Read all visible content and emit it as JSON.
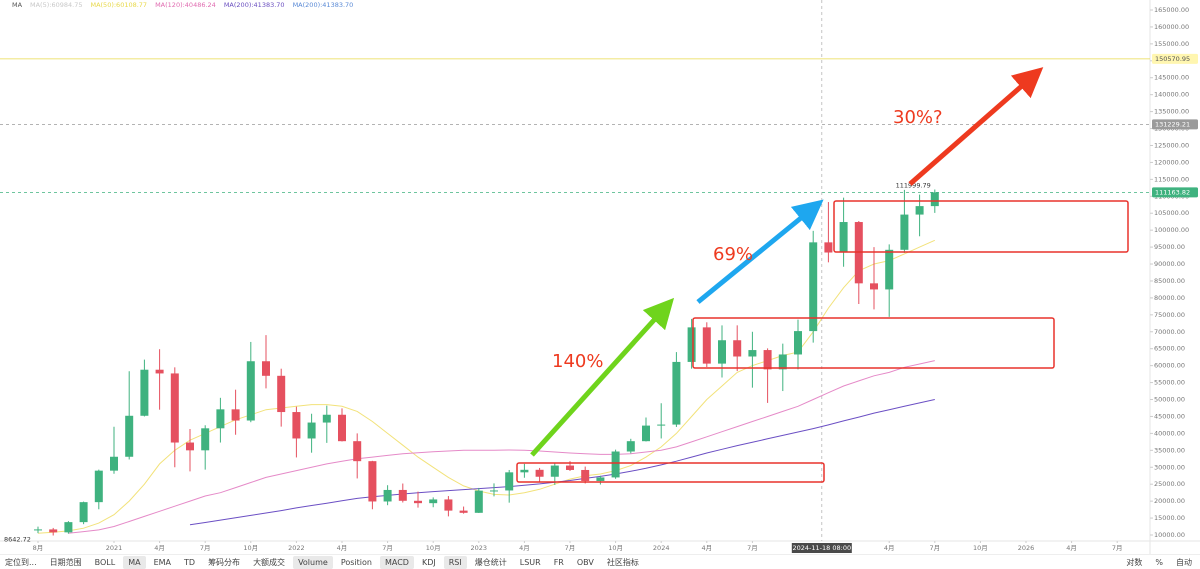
{
  "legend": {
    "title": "MA",
    "items": [
      {
        "text": "MA(5):60984.75",
        "color": "#c8c8c8"
      },
      {
        "text": "MA(50):60108.77",
        "color": "#e8d94a"
      },
      {
        "text": "MA(120):40486.24",
        "color": "#e06bb0"
      },
      {
        "text": "MA(200):41383.70",
        "color": "#6a4fc0"
      },
      {
        "text": "MA(200):41383.70",
        "color": "#5a8ad6"
      }
    ]
  },
  "chart_data": {
    "type": "candlestick",
    "x": [
      "2020-08",
      "2020-09",
      "2020-10",
      "2020-11",
      "2020-12",
      "2021-01",
      "2021-02",
      "2021-03",
      "2021-04",
      "2021-05",
      "2021-06",
      "2021-07",
      "2021-08",
      "2021-09",
      "2021-10",
      "2021-11",
      "2021-12",
      "2022-01",
      "2022-02",
      "2022-03",
      "2022-04",
      "2022-05",
      "2022-06",
      "2022-07",
      "2022-08",
      "2022-09",
      "2022-10",
      "2022-11",
      "2022-12",
      "2023-01",
      "2023-02",
      "2023-03",
      "2023-04",
      "2023-05",
      "2023-06",
      "2023-07",
      "2023-08",
      "2023-09",
      "2023-10",
      "2023-11",
      "2023-12",
      "2024-01",
      "2024-02",
      "2024-03",
      "2024-04",
      "2024-05",
      "2024-06",
      "2024-07",
      "2024-08",
      "2024-09",
      "2024-10",
      "2024-11",
      "2024-12",
      "2025-01",
      "2025-02",
      "2025-03",
      "2025-04",
      "2025-05",
      "2025-06",
      "2025-07"
    ],
    "open": [
      11350,
      11650,
      10780,
      13800,
      19700,
      29000,
      33100,
      45200,
      58800,
      57700,
      37300,
      35000,
      41500,
      47100,
      43800,
      61300,
      57000,
      46300,
      38500,
      43200,
      45500,
      37700,
      31800,
      19900,
      23300,
      20100,
      19400,
      20500,
      17200,
      16550,
      23100,
      23150,
      28500,
      29250,
      27200,
      30500,
      29200,
      25950,
      27000,
      34650,
      37700,
      42300,
      42600,
      61100,
      71300,
      60600,
      67500,
      62700,
      64600,
      58900,
      63300,
      70200,
      96400,
      93400,
      102400,
      84300,
      82500,
      94200,
      104600,
      107100
    ],
    "high": [
      12470,
      12090,
      14100,
      19860,
      29300,
      41950,
      58350,
      61780,
      64850,
      59500,
      41300,
      42400,
      50500,
      52900,
      67000,
      69000,
      59100,
      47900,
      45800,
      48200,
      47400,
      40000,
      31900,
      24700,
      25200,
      22800,
      21100,
      21500,
      18400,
      23900,
      25250,
      29200,
      31000,
      29800,
      31400,
      31800,
      30200,
      27500,
      35200,
      38400,
      44700,
      48900,
      64000,
      73800,
      72800,
      71900,
      71900,
      70000,
      65100,
      66500,
      73600,
      99800,
      108300,
      109600,
      102700,
      95000,
      95800,
      111900,
      110500,
      111999.79
    ],
    "low": [
      10540,
      9850,
      10400,
      13200,
      17600,
      28100,
      32300,
      45000,
      47000,
      30000,
      28800,
      29300,
      37300,
      39600,
      43300,
      53300,
      42000,
      32900,
      34300,
      37200,
      37600,
      26700,
      17600,
      18800,
      19600,
      18100,
      18200,
      15500,
      16300,
      16500,
      21400,
      19550,
      26900,
      25800,
      24800,
      28900,
      25200,
      24900,
      26600,
      34100,
      37600,
      38500,
      41900,
      59100,
      59600,
      56500,
      58400,
      53500,
      49000,
      52500,
      58900,
      66800,
      90500,
      89200,
      78200,
      76600,
      74400,
      93300,
      98200,
      105100
    ],
    "close": [
      11650,
      10780,
      13800,
      19700,
      29000,
      33100,
      45200,
      58800,
      57700,
      37300,
      35000,
      41500,
      47100,
      43800,
      61300,
      57000,
      46300,
      38500,
      43200,
      45500,
      37700,
      31800,
      19900,
      23300,
      20100,
      19400,
      20500,
      17200,
      16550,
      23100,
      23150,
      28500,
      29250,
      27200,
      30500,
      29200,
      25950,
      27000,
      34650,
      37700,
      42300,
      42600,
      61100,
      71300,
      60600,
      67500,
      62700,
      64600,
      58900,
      63300,
      70200,
      96400,
      93400,
      102400,
      84300,
      82500,
      94200,
      104600,
      107100,
      111163.82
    ],
    "up_color": "#3fb27f",
    "down_color": "#e5505f",
    "lines": [
      {
        "color": "#f2e27a",
        "values": [
          10500,
          10800,
          11200,
          12000,
          13500,
          16000,
          20000,
          25000,
          31000,
          35000,
          38000,
          40000,
          42000,
          44000,
          45500,
          47000,
          47500,
          48000,
          48500,
          48500,
          48000,
          46500,
          43500,
          40000,
          36500,
          33000,
          30000,
          27000,
          24500,
          23000,
          22000,
          21800,
          22500,
          23500,
          25000,
          26500,
          27500,
          28000,
          29000,
          30500,
          33000,
          36000,
          40000,
          45000,
          50000,
          54000,
          58000,
          60000,
          61500,
          63000,
          64000,
          70000,
          77000,
          83000,
          88000,
          90000,
          91000,
          93000,
          95000,
          97000
        ]
      },
      {
        "color": "#e58ac8",
        "values": [
          null,
          null,
          10500,
          11000,
          11500,
          12500,
          14000,
          15500,
          17000,
          18500,
          20000,
          21500,
          22500,
          24000,
          25500,
          27000,
          28000,
          29000,
          30000,
          31000,
          31800,
          32500,
          33000,
          33500,
          34000,
          34300,
          34600,
          34800,
          35000,
          35000,
          35000,
          35100,
          35000,
          34800,
          34500,
          34200,
          34000,
          33800,
          33800,
          34000,
          34500,
          35000,
          36000,
          37500,
          39000,
          40500,
          42000,
          43500,
          45000,
          46500,
          48000,
          50000,
          52000,
          54000,
          55500,
          57000,
          58000,
          59500,
          60500,
          61500
        ]
      },
      {
        "color": "#6b4fc4",
        "values": [
          null,
          null,
          null,
          null,
          null,
          null,
          null,
          null,
          null,
          null,
          13000,
          13700,
          14400,
          15100,
          15800,
          16500,
          17200,
          18000,
          18700,
          19400,
          20100,
          20800,
          21300,
          21700,
          22100,
          22500,
          22800,
          23100,
          23400,
          23700,
          24000,
          24300,
          24700,
          25100,
          25600,
          26100,
          26700,
          27300,
          28000,
          28800,
          29700,
          30700,
          31800,
          33000,
          34200,
          35300,
          36400,
          37400,
          38400,
          39400,
          40400,
          41400,
          42500,
          43700,
          44800,
          46000,
          47000,
          48000,
          49000,
          50000
        ]
      }
    ],
    "xlim": [
      "2020-06",
      "2026-09"
    ],
    "xticks": [
      {
        "value": "2020-08",
        "label": "8月"
      },
      {
        "value": "2021-01",
        "label": "2021"
      },
      {
        "value": "2021-04",
        "label": "4月"
      },
      {
        "value": "2021-07",
        "label": "7月"
      },
      {
        "value": "2021-10",
        "label": "10月"
      },
      {
        "value": "2022-01",
        "label": "2022"
      },
      {
        "value": "2022-04",
        "label": "4月"
      },
      {
        "value": "2022-07",
        "label": "7月"
      },
      {
        "value": "2022-10",
        "label": "10月"
      },
      {
        "value": "2023-01",
        "label": "2023"
      },
      {
        "value": "2023-04",
        "label": "4月"
      },
      {
        "value": "2023-07",
        "label": "7月"
      },
      {
        "value": "2023-10",
        "label": "10月"
      },
      {
        "value": "2024-01",
        "label": "2024"
      },
      {
        "value": "2024-04",
        "label": "4月"
      },
      {
        "value": "2024-07",
        "label": "7月"
      },
      {
        "value": "2025-04",
        "label": "4月"
      },
      {
        "value": "2025-07",
        "label": "7月"
      },
      {
        "value": "2025-10",
        "label": "10月"
      },
      {
        "value": "2026-01",
        "label": "2026"
      },
      {
        "value": "2026-04",
        "label": "4月"
      },
      {
        "value": "2026-07",
        "label": "7月"
      }
    ],
    "ylim": [
      8524,
      167952
    ],
    "yticks": [
      {
        "value": 10000,
        "label": "10000.00"
      },
      {
        "value": 15000,
        "label": "15000.00"
      },
      {
        "value": 20000,
        "label": "20000.00"
      },
      {
        "value": 25000,
        "label": "25000.00"
      },
      {
        "value": 30000,
        "label": "30000.00"
      },
      {
        "value": 35000,
        "label": "35000.00"
      },
      {
        "value": 40000,
        "label": "40000.00"
      },
      {
        "value": 45000,
        "label": "45000.00"
      },
      {
        "value": 50000,
        "label": "50000.00"
      },
      {
        "value": 55000,
        "label": "55000.00"
      },
      {
        "value": 60000,
        "label": "60000.00"
      },
      {
        "value": 65000,
        "label": "65000.00"
      },
      {
        "value": 70000,
        "label": "70000.00"
      },
      {
        "value": 75000,
        "label": "75000.00"
      },
      {
        "value": 80000,
        "label": "80000.00"
      },
      {
        "value": 85000,
        "label": "85000.00"
      },
      {
        "value": 90000,
        "label": "90000.00"
      },
      {
        "value": 95000,
        "label": "95000.00"
      },
      {
        "value": 100000,
        "label": "100000.00"
      },
      {
        "value": 105000,
        "label": "105000.00"
      },
      {
        "value": 110000,
        "label": "110000.00"
      },
      {
        "value": 115000,
        "label": "115000.00"
      },
      {
        "value": 120000,
        "label": "120000.00"
      },
      {
        "value": 125000,
        "label": "125000.00"
      },
      {
        "value": 130000,
        "label": "130000.00"
      },
      {
        "value": 135000,
        "label": "135000.00"
      },
      {
        "value": 140000,
        "label": "140000.00"
      },
      {
        "value": 145000,
        "label": "145000.00"
      },
      {
        "value": 150000,
        "label": "150000.00"
      },
      {
        "value": 155000,
        "label": "155000.00"
      },
      {
        "value": 160000,
        "label": "160000.00"
      },
      {
        "value": 165000,
        "label": "165000.00"
      }
    ],
    "hlines": [
      {
        "value": 150570.95,
        "color": "#e8d94a",
        "style": "solid"
      },
      {
        "value": 131229.21,
        "color": "#9a9a9a",
        "style": "dashed"
      },
      {
        "value": 111163.82,
        "color": "#3fb27f",
        "style": "dashed"
      }
    ],
    "crosshair": {
      "value": "2024-11-18",
      "label": "2024-11-18 08:00"
    },
    "high_marker": 111999.79,
    "low_marker": 8642.72,
    "annotations": [
      "140%",
      "69%",
      "30%?"
    ]
  },
  "toolbar": {
    "items": [
      {
        "text": "定位到...",
        "active": false
      },
      {
        "text": "日期范围",
        "active": false
      },
      {
        "text": "BOLL",
        "active": false
      },
      {
        "text": "MA",
        "active": true
      },
      {
        "text": "EMA",
        "active": false
      },
      {
        "text": "TD",
        "active": false
      },
      {
        "text": "筹码分布",
        "active": false
      },
      {
        "text": "大额成交",
        "active": false
      },
      {
        "text": "Volume",
        "active": true
      },
      {
        "text": "Position",
        "active": false
      },
      {
        "text": "MACD",
        "active": true
      },
      {
        "text": "KDJ",
        "active": false
      },
      {
        "text": "RSI",
        "active": true
      },
      {
        "text": "爆仓统计",
        "active": false
      },
      {
        "text": "LSUR",
        "active": false
      },
      {
        "text": "FR",
        "active": false
      },
      {
        "text": "OBV",
        "active": false
      },
      {
        "text": "社区指标",
        "active": false
      }
    ],
    "right": [
      "对数",
      "%",
      "自动"
    ]
  }
}
